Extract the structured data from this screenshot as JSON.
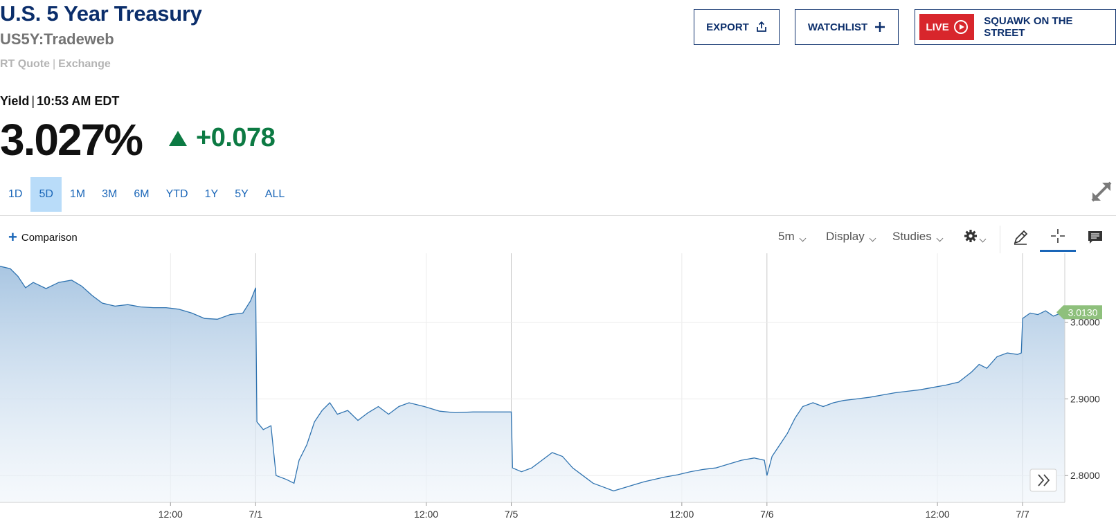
{
  "header": {
    "title": "U.S. 5 Year Treasury",
    "symbol": "US5Y:Tradeweb",
    "rt_quote": "RT Quote",
    "exchange": "Exchange"
  },
  "quote": {
    "label": "Yield",
    "time": "10:53 AM EDT",
    "value": "3.027%",
    "change": "+0.078",
    "change_color": "#0c7a43"
  },
  "actions": {
    "export_label": "EXPORT",
    "watchlist_label": "WATCHLIST",
    "live_label": "LIVE",
    "squawk_label": "SQUAWK ON THE STREET",
    "live_color": "#d8262c"
  },
  "ranges": {
    "items": [
      "1D",
      "5D",
      "1M",
      "3M",
      "6M",
      "YTD",
      "1Y",
      "5Y",
      "ALL"
    ],
    "active": "5D"
  },
  "toolbar": {
    "comparison_label": "Comparison",
    "interval_label": "5m",
    "display_label": "Display",
    "studies_label": "Studies",
    "icons": [
      "gear-icon",
      "pencil-icon",
      "crosshair-icon",
      "comment-icon",
      "expand-icon",
      "scroll-forward-icon"
    ]
  },
  "chart_data": {
    "type": "area",
    "line_color": "#2f73b0",
    "fill_color_top": "#a9c6e2",
    "current_value": 3.013,
    "current_value_label": "3.0130",
    "current_badge_color": "#8ec07c",
    "y_ticks": [
      "3.0000",
      "2.9000",
      "2.8000"
    ],
    "y_tick_values": [
      3.0,
      2.9,
      2.8
    ],
    "ylim": [
      2.765,
      3.09
    ],
    "x_ticks": [
      {
        "label": "12:00",
        "t": 0.667
      },
      {
        "label": "7/1",
        "t": 1.0
      },
      {
        "label": "12:00",
        "t": 1.667
      },
      {
        "label": "7/5",
        "t": 2.0
      },
      {
        "label": "12:00",
        "t": 2.667
      },
      {
        "label": "7/6",
        "t": 3.0
      },
      {
        "label": "12:00",
        "t": 3.667
      },
      {
        "label": "7/7",
        "t": 4.0
      }
    ],
    "xlim": [
      0.0,
      4.165
    ],
    "series_points": [
      [
        0.0,
        3.073
      ],
      [
        0.04,
        3.07
      ],
      [
        0.07,
        3.06
      ],
      [
        0.1,
        3.045
      ],
      [
        0.13,
        3.052
      ],
      [
        0.18,
        3.044
      ],
      [
        0.23,
        3.052
      ],
      [
        0.28,
        3.055
      ],
      [
        0.32,
        3.047
      ],
      [
        0.36,
        3.035
      ],
      [
        0.4,
        3.025
      ],
      [
        0.45,
        3.021
      ],
      [
        0.5,
        3.023
      ],
      [
        0.55,
        3.02
      ],
      [
        0.6,
        3.019
      ],
      [
        0.65,
        3.019
      ],
      [
        0.7,
        3.017
      ],
      [
        0.75,
        3.012
      ],
      [
        0.8,
        3.005
      ],
      [
        0.85,
        3.004
      ],
      [
        0.9,
        3.01
      ],
      [
        0.95,
        3.012
      ],
      [
        0.98,
        3.028
      ],
      [
        1.0,
        3.045
      ],
      [
        1.005,
        2.87
      ],
      [
        1.03,
        2.86
      ],
      [
        1.06,
        2.865
      ],
      [
        1.08,
        2.8
      ],
      [
        1.12,
        2.795
      ],
      [
        1.15,
        2.79
      ],
      [
        1.17,
        2.82
      ],
      [
        1.2,
        2.84
      ],
      [
        1.23,
        2.87
      ],
      [
        1.26,
        2.885
      ],
      [
        1.29,
        2.895
      ],
      [
        1.32,
        2.88
      ],
      [
        1.36,
        2.885
      ],
      [
        1.4,
        2.872
      ],
      [
        1.44,
        2.882
      ],
      [
        1.48,
        2.89
      ],
      [
        1.52,
        2.88
      ],
      [
        1.56,
        2.89
      ],
      [
        1.6,
        2.895
      ],
      [
        1.66,
        2.89
      ],
      [
        1.72,
        2.884
      ],
      [
        1.78,
        2.882
      ],
      [
        1.85,
        2.883
      ],
      [
        1.93,
        2.883
      ],
      [
        2.0,
        2.883
      ],
      [
        2.005,
        2.81
      ],
      [
        2.04,
        2.805
      ],
      [
        2.08,
        2.81
      ],
      [
        2.12,
        2.82
      ],
      [
        2.16,
        2.83
      ],
      [
        2.2,
        2.825
      ],
      [
        2.24,
        2.81
      ],
      [
        2.28,
        2.8
      ],
      [
        2.32,
        2.79
      ],
      [
        2.36,
        2.785
      ],
      [
        2.4,
        2.78
      ],
      [
        2.44,
        2.784
      ],
      [
        2.48,
        2.788
      ],
      [
        2.52,
        2.792
      ],
      [
        2.56,
        2.795
      ],
      [
        2.6,
        2.798
      ],
      [
        2.65,
        2.801
      ],
      [
        2.7,
        2.805
      ],
      [
        2.75,
        2.808
      ],
      [
        2.8,
        2.81
      ],
      [
        2.85,
        2.815
      ],
      [
        2.9,
        2.82
      ],
      [
        2.95,
        2.823
      ],
      [
        2.99,
        2.82
      ],
      [
        3.0,
        2.8
      ],
      [
        3.02,
        2.825
      ],
      [
        3.05,
        2.84
      ],
      [
        3.08,
        2.855
      ],
      [
        3.11,
        2.875
      ],
      [
        3.14,
        2.89
      ],
      [
        3.18,
        2.895
      ],
      [
        3.22,
        2.89
      ],
      [
        3.26,
        2.895
      ],
      [
        3.3,
        2.898
      ],
      [
        3.35,
        2.9
      ],
      [
        3.4,
        2.902
      ],
      [
        3.45,
        2.905
      ],
      [
        3.5,
        2.908
      ],
      [
        3.55,
        2.91
      ],
      [
        3.6,
        2.912
      ],
      [
        3.65,
        2.915
      ],
      [
        3.7,
        2.918
      ],
      [
        3.75,
        2.922
      ],
      [
        3.8,
        2.935
      ],
      [
        3.83,
        2.945
      ],
      [
        3.86,
        2.94
      ],
      [
        3.9,
        2.955
      ],
      [
        3.94,
        2.96
      ],
      [
        3.98,
        2.958
      ],
      [
        3.995,
        2.96
      ],
      [
        4.0,
        3.005
      ],
      [
        4.03,
        3.012
      ],
      [
        4.06,
        3.01
      ],
      [
        4.09,
        3.015
      ],
      [
        4.12,
        3.008
      ],
      [
        4.15,
        3.012
      ],
      [
        4.165,
        3.013
      ]
    ]
  }
}
